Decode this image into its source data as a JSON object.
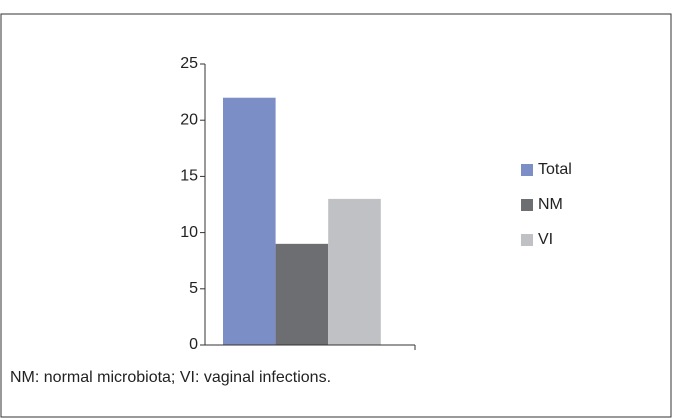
{
  "chart_data": {
    "type": "bar",
    "categories": [
      null
    ],
    "series": [
      {
        "name": "Total",
        "color": "#7b8fc6",
        "values": [
          22
        ]
      },
      {
        "name": "NM",
        "color": "#6d6e72",
        "values": [
          9
        ]
      },
      {
        "name": "VI",
        "color": "#c0c1c5",
        "values": [
          13
        ]
      }
    ],
    "ylim": [
      0,
      25
    ],
    "yticks": [
      0,
      5,
      10,
      15,
      20,
      25
    ],
    "legend": "right",
    "note": "NM: normal microbiota; VI: vaginal infections."
  }
}
